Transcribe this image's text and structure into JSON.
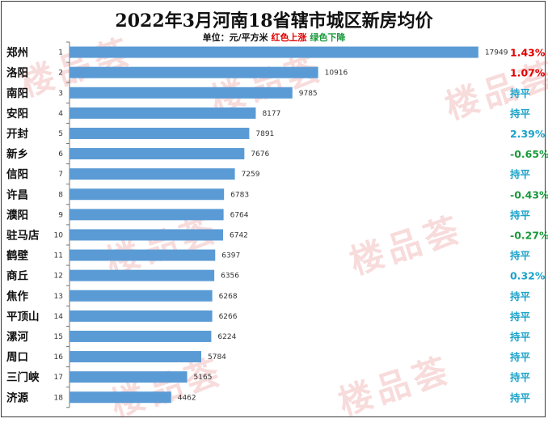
{
  "title": "2022年3月河南18省辖市城区新房均价",
  "subtitle": {
    "unit": "单位：元/平方米",
    "red_legend": "红色上涨",
    "green_legend": "绿色下降"
  },
  "watermark": "楼品荟",
  "colors": {
    "bar": "#5b9bd5",
    "up": "#e00000",
    "down": "#1a9a3c",
    "flat": "#1aa3c9",
    "pct_up": "#1aa3c9"
  },
  "chart_data": {
    "type": "bar",
    "orientation": "horizontal",
    "title": "2022年3月河南18省辖市城区新房均价",
    "unit": "元/平方米",
    "categories": [
      "郑州",
      "洛阳",
      "南阳",
      "安阳",
      "开封",
      "新乡",
      "信阳",
      "许昌",
      "濮阳",
      "驻马店",
      "鹤壁",
      "商丘",
      "焦作",
      "平顶山",
      "漯河",
      "周口",
      "三门峡",
      "济源"
    ],
    "ranks": [
      "1",
      "2",
      "3",
      "4",
      "5",
      "6",
      "7",
      "8",
      "9",
      "10",
      "11",
      "12",
      "13",
      "14",
      "15",
      "16",
      "17",
      "18"
    ],
    "values": [
      17949,
      10916,
      9785,
      8177,
      7891,
      7676,
      7259,
      6783,
      6764,
      6742,
      6397,
      6356,
      6268,
      6266,
      6224,
      5784,
      5165,
      4462
    ],
    "changes": [
      "1.43%",
      "1.07%",
      "持平",
      "持平",
      "2.39%",
      "-0.65%",
      "持平",
      "-0.43%",
      "持平",
      "-0.27%",
      "持平",
      "0.32%",
      "持平",
      "持平",
      "持平",
      "持平",
      "持平",
      "持平"
    ],
    "change_colors": [
      "#e00000",
      "#e00000",
      "#1aa3c9",
      "#1aa3c9",
      "#1aa3c9",
      "#1a9a3c",
      "#1aa3c9",
      "#1a9a3c",
      "#1aa3c9",
      "#1a9a3c",
      "#1aa3c9",
      "#1aa3c9",
      "#1aa3c9",
      "#1aa3c9",
      "#1aa3c9",
      "#1aa3c9",
      "#1aa3c9",
      "#1aa3c9"
    ],
    "xlim": [
      0,
      18700
    ],
    "grid": false,
    "legend": "none"
  }
}
